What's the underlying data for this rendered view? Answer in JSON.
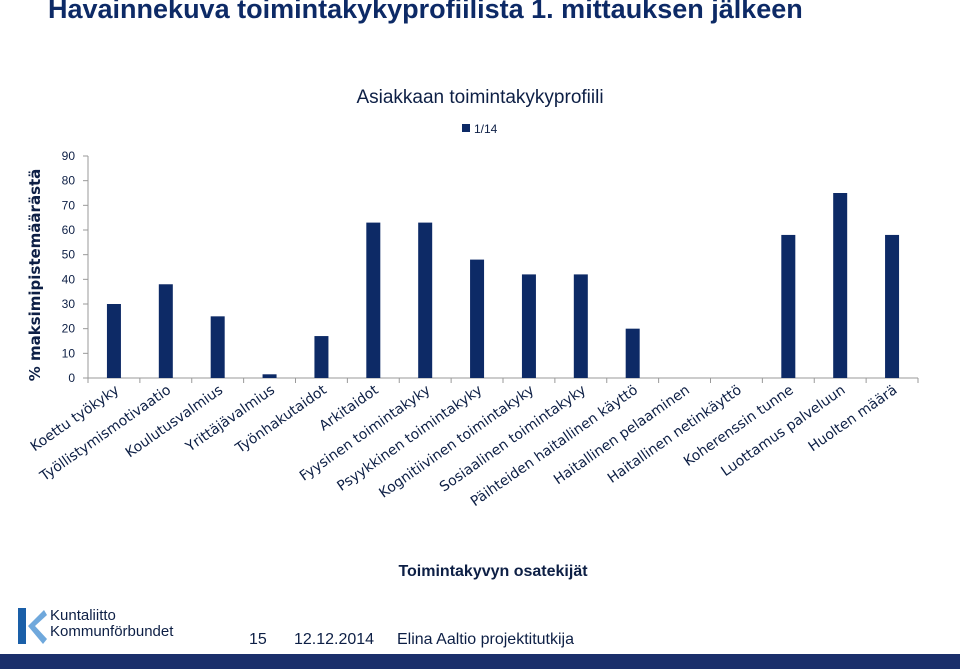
{
  "slide": {
    "title": "Havainnekuva toimintakykyprofiilista 1. mittauksen jälkeen"
  },
  "colors": {
    "bar": "#0d2a66",
    "axis": "#9a9a9a",
    "text": "#0d1f45",
    "footer": "#1a2f6b"
  },
  "chart_data": {
    "type": "bar",
    "title": "Asiakkaan toimintakykyprofiili",
    "xlabel": "Toimintakyvyn osatekijät",
    "ylabel": "% maksimipistemäärästä",
    "ylim": [
      0,
      90
    ],
    "yticks": [
      0,
      10,
      20,
      30,
      40,
      50,
      60,
      70,
      80,
      90
    ],
    "grid": false,
    "legend_position": "top-right",
    "categories": [
      "Koettu työkyky",
      "Työllistymismotivaatio",
      "Koulutusvalmius",
      "Yrittäjävalmius",
      "Työnhakutaidot",
      "Arkitaidot",
      "Fyysinen toimintakyky",
      "Psyykkinen toimintakyky",
      "Kognitiivinen toimintakyky",
      "Sosiaalinen toimintakyky",
      "Päihteiden haitallinen käyttö",
      "Haitallinen pelaaminen",
      "Haitallinen netinkäyttö",
      "Koherenssin tunne",
      "Luottamus palveluun",
      "Huolten määrä"
    ],
    "series": [
      {
        "name": "1/14",
        "values": [
          30,
          38,
          25,
          1.5,
          17,
          63,
          63,
          48,
          42,
          42,
          20,
          0,
          0,
          58,
          75,
          58
        ]
      }
    ]
  },
  "footer": {
    "logo_line1": "Kuntaliitto",
    "logo_line2": "Kommunförbundet",
    "page_number": "15",
    "date": "12.12.2014",
    "author": "Elina Aaltio projektitutkija"
  }
}
